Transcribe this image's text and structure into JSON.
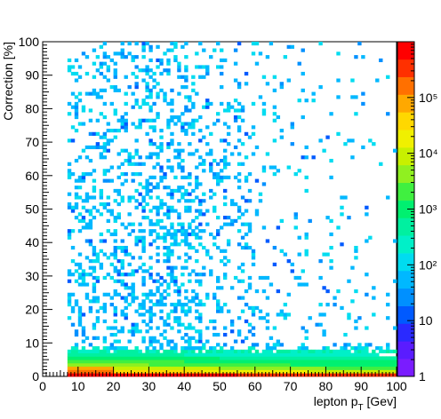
{
  "chart_data": {
    "type": "heatmap",
    "title": "",
    "xlabel": "lepton p",
    "xlabel_sub": "T",
    "xlabel_unit": " [Gev]",
    "ylabel": "Correction [%]",
    "xlim": [
      0,
      100
    ],
    "ylim": [
      0,
      100
    ],
    "x_ticks": [
      "0",
      "10",
      "20",
      "30",
      "40",
      "50",
      "60",
      "70",
      "80",
      "90",
      "100"
    ],
    "y_ticks": [
      "0",
      "10",
      "20",
      "30",
      "40",
      "50",
      "60",
      "70",
      "80",
      "90",
      "100"
    ],
    "z_scale": "log",
    "z_range": [
      1,
      1000000
    ],
    "z_ticks": [
      "1",
      "10",
      "10²",
      "10³",
      "10⁴",
      "10⁵"
    ],
    "bin_width": [
      1,
      1
    ],
    "x_bins_start": 7,
    "notes": "Density concentrated at Correction 0-10 % across all lepton pT; sparse low-count bins above.",
    "palette": [
      "#7a1cff",
      "#5a1cff",
      "#2a2aff",
      "#005aff",
      "#0090ff",
      "#00b8ff",
      "#00dcf0",
      "#00f0c8",
      "#00f0a0",
      "#00f070",
      "#40f040",
      "#90f020",
      "#c8f000",
      "#f0f000",
      "#ffd800",
      "#ffa800",
      "#ff7000",
      "#ff3000",
      "#ff0000"
    ]
  }
}
